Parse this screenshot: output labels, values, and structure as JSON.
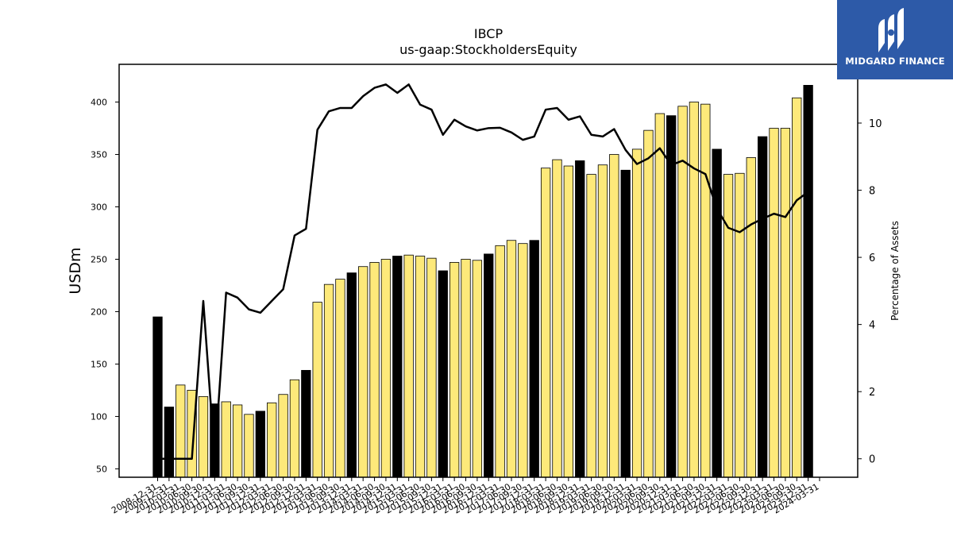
{
  "chart_data": {
    "type": "bar+line",
    "title": "IBCP",
    "subtitle": "us-gaap:StockholdersEquity",
    "ylabel": "USDm",
    "y2label": "Percentage of Assets",
    "ylim": [
      42,
      436
    ],
    "y2lim": [
      -0.55,
      11.75
    ],
    "yticks": [
      50,
      100,
      150,
      200,
      250,
      300,
      350,
      400
    ],
    "y2ticks": [
      0,
      2,
      4,
      6,
      8,
      10
    ],
    "categories": [
      "2008-12-31",
      "2009-12-31",
      "2010-03-31",
      "2010-06-30",
      "2010-09-30",
      "2010-12-31",
      "2011-03-31",
      "2011-06-30",
      "2011-09-30",
      "2011-12-31",
      "2012-03-31",
      "2012-06-30",
      "2012-09-30",
      "2012-12-31",
      "2013-03-31",
      "2013-06-30",
      "2013-09-30",
      "2013-12-31",
      "2014-03-31",
      "2014-06-30",
      "2014-09-30",
      "2014-12-31",
      "2015-03-31",
      "2015-06-30",
      "2015-09-30",
      "2015-12-31",
      "2016-03-31",
      "2016-06-30",
      "2016-09-30",
      "2016-12-31",
      "2017-03-31",
      "2017-06-30",
      "2017-09-30",
      "2017-12-31",
      "2018-03-31",
      "2018-06-30",
      "2018-09-30",
      "2018-12-31",
      "2019-03-31",
      "2019-06-30",
      "2019-09-30",
      "2019-12-31",
      "2020-03-31",
      "2020-06-30",
      "2020-09-30",
      "2020-12-31",
      "2021-03-31",
      "2021-06-30",
      "2021-09-30",
      "2021-12-31",
      "2022-03-31",
      "2022-06-30",
      "2022-09-30",
      "2022-12-31",
      "2023-03-31",
      "2023-06-30",
      "2023-09-30",
      "2023-12-31",
      "2024-03-31"
    ],
    "equity_usdm": [
      195,
      109,
      130,
      125,
      119,
      112,
      114,
      111,
      102,
      105,
      113,
      121,
      135,
      144,
      209,
      226,
      231,
      237,
      243,
      247,
      250,
      253,
      254,
      253,
      251,
      239,
      247,
      250,
      249,
      255,
      263,
      268,
      265,
      268,
      337,
      345,
      339,
      344,
      331,
      340,
      350,
      335,
      355,
      373,
      389,
      387,
      396,
      400,
      398,
      355,
      331,
      332,
      347,
      367,
      375,
      375,
      404,
      416,
      null
    ],
    "annual_report": [
      true,
      true,
      false,
      false,
      false,
      true,
      false,
      false,
      false,
      true,
      false,
      false,
      false,
      true,
      false,
      false,
      false,
      true,
      false,
      false,
      false,
      true,
      false,
      false,
      false,
      true,
      false,
      false,
      false,
      true,
      false,
      false,
      false,
      true,
      false,
      false,
      false,
      true,
      false,
      false,
      false,
      true,
      false,
      false,
      false,
      true,
      false,
      false,
      false,
      true,
      false,
      false,
      false,
      true,
      false,
      false,
      false,
      true,
      false
    ],
    "pct_of_assets": [
      0,
      0,
      0,
      0,
      4.7,
      0,
      4.95,
      4.8,
      4.45,
      4.35,
      4.7,
      5.05,
      6.65,
      6.85,
      9.8,
      10.35,
      10.45,
      10.45,
      10.8,
      11.05,
      11.15,
      10.9,
      11.15,
      10.55,
      10.4,
      9.65,
      10.1,
      9.9,
      9.78,
      9.85,
      9.86,
      9.72,
      9.5,
      9.6,
      10.4,
      10.45,
      10.1,
      10.2,
      9.65,
      9.6,
      9.82,
      9.2,
      8.78,
      8.95,
      9.25,
      8.75,
      8.88,
      8.65,
      8.48,
      7.45,
      6.88,
      6.75,
      6.98,
      7.15,
      7.3,
      7.2,
      7.7,
      7.95,
      null
    ],
    "colors": {
      "annual_bar": "#000000",
      "quarter_bar": "#fde97a",
      "bar_edge": "#000000",
      "line": "#000000"
    },
    "grid": false,
    "legend": "none"
  },
  "logo": {
    "text": "MIDGARD FINANCE"
  }
}
